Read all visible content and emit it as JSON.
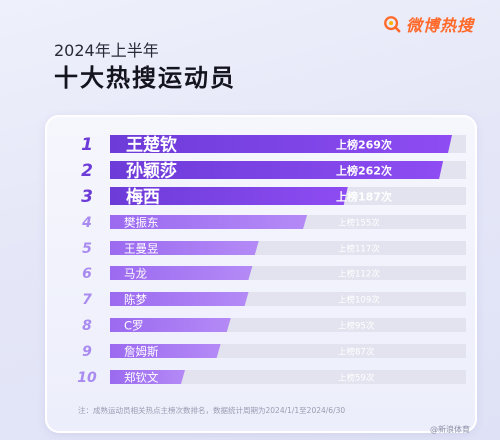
{
  "brand": {
    "name": "微博热搜",
    "icon": "weibo-hot-search-logo-icon"
  },
  "header": {
    "subtitle": "2024年上半年",
    "title": "十大热搜运动员"
  },
  "footnote": "注：成熟运动员相关热点主榜次数排名，数据统计周期为2024/1/1至2024/6/30",
  "watermark": "@新浪体育",
  "colors": {
    "top3": "#6c3bd8",
    "rest": "#9b6af0",
    "rank_top3": "#6c3bd8",
    "rank_rest": "#a98bf0",
    "track": "#e3e3ef"
  },
  "chart_data": {
    "type": "bar",
    "orientation": "horizontal",
    "ranks": [
      "1",
      "2",
      "3",
      "4",
      "5",
      "6",
      "7",
      "8",
      "9",
      "10"
    ],
    "categories": [
      "王楚钦",
      "孙颖莎",
      "梅西",
      "樊振东",
      "王曼昱",
      "马龙",
      "陈梦",
      "C罗",
      "詹姆斯",
      "郑钦文"
    ],
    "values": [
      269,
      262,
      187,
      155,
      117,
      112,
      109,
      95,
      87,
      59
    ],
    "value_labels": [
      "上榜269次",
      "上榜262次",
      "上榜187次",
      "上榜155次",
      "上榜117次",
      "上榜112次",
      "上榜109次",
      "上榜95次",
      "上榜87次",
      "上榜59次"
    ]
  }
}
